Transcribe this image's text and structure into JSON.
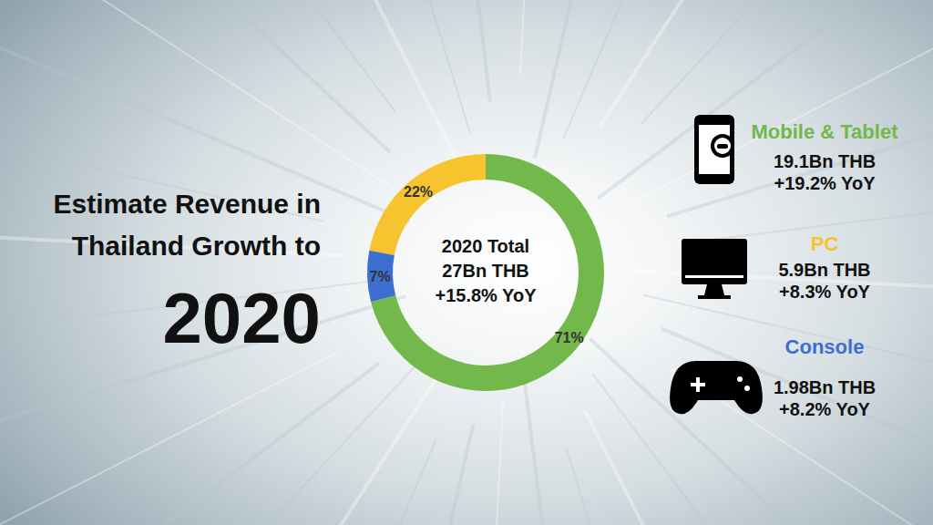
{
  "chart_data": {
    "type": "pie",
    "title": "Estimate Revenue in Thailand Growth to",
    "subtitle": "2020",
    "categories": [
      "Mobile & Tablet",
      "PC",
      "Console"
    ],
    "values": [
      71,
      22,
      7
    ],
    "value_labels": [
      "71%",
      "22%",
      "7%"
    ],
    "colors": [
      "#72b84a",
      "#f7c430",
      "#3b6fd0"
    ],
    "data_labels": true,
    "annotations": {
      "center": [
        "2020 Total",
        "27Bn THB",
        "+15.8% YoY"
      ],
      "details": [
        [
          "19.1Bn THB",
          "+19.2% YoY"
        ],
        [
          "5.9Bn THB",
          "+8.3% YoY"
        ],
        [
          "1.98Bn THB",
          "+8.2% YoY"
        ]
      ]
    }
  }
}
